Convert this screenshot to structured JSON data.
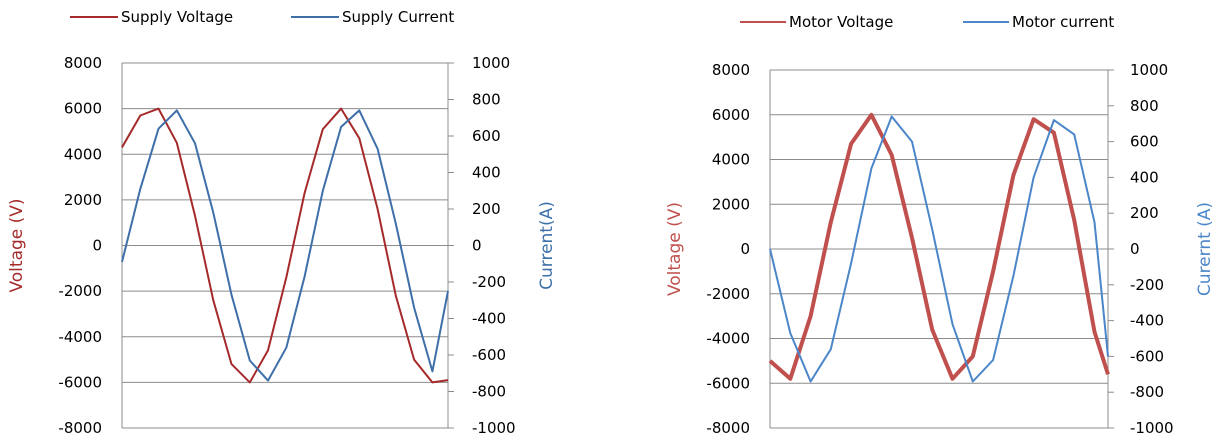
{
  "chart_data": [
    {
      "type": "line",
      "xlabel": "",
      "ylabel": "Voltage (V)",
      "y2label": "Current(A)",
      "ylim": [
        -8000,
        8000
      ],
      "y2lim": [
        -1000,
        1000
      ],
      "y_ticks": [
        "8000",
        "6000",
        "4000",
        "2000",
        "0",
        "-2000",
        "-4000",
        "-6000",
        "-8000"
      ],
      "y2_ticks": [
        "1000",
        "800",
        "600",
        "400",
        "200",
        "0",
        "-200",
        "-400",
        "-600",
        "-800",
        "-1000"
      ],
      "grid": true,
      "legend_position": "top",
      "series": [
        {
          "name": "Supply Voltage",
          "axis": "left",
          "color": "#A52A2A",
          "x": [
            0.0,
            0.056,
            0.112,
            0.168,
            0.224,
            0.28,
            0.336,
            0.392,
            0.448,
            0.504,
            0.56,
            0.616,
            0.672,
            0.728,
            0.784,
            0.84,
            0.896,
            0.952,
            1.0
          ],
          "values": [
            4300,
            5700,
            6000,
            4500,
            1300,
            -2400,
            -5200,
            -6000,
            -4600,
            -1400,
            2300,
            5100,
            6000,
            4700,
            1600,
            -2200,
            -5000,
            -6000,
            -5900
          ]
        },
        {
          "name": "Supply Current",
          "axis": "right",
          "color": "#3E6FA8",
          "x": [
            0.0,
            0.056,
            0.112,
            0.168,
            0.224,
            0.28,
            0.336,
            0.392,
            0.448,
            0.504,
            0.56,
            0.616,
            0.672,
            0.728,
            0.784,
            0.84,
            0.896,
            0.952,
            1.0
          ],
          "values": [
            -90,
            310,
            640,
            740,
            560,
            180,
            -270,
            -630,
            -740,
            -560,
            -170,
            300,
            650,
            740,
            530,
            120,
            -340,
            -690,
            -250
          ]
        }
      ]
    },
    {
      "type": "line",
      "xlabel": "",
      "ylabel": "Voltage (V)",
      "y2label": "Curernt (A)",
      "ylim": [
        -8000,
        8000
      ],
      "y2lim": [
        -1000,
        1000
      ],
      "y_ticks": [
        "8000",
        "6000",
        "4000",
        "2000",
        "0",
        "-2000",
        "-4000",
        "-6000",
        "-8000"
      ],
      "y2_ticks": [
        "1000",
        "800",
        "600",
        "400",
        "200",
        "0",
        "-200",
        "-400",
        "-600",
        "-800",
        "-1000"
      ],
      "grid": true,
      "legend_position": "top",
      "series": [
        {
          "name": "Motor Voltage",
          "axis": "left",
          "color": "#C0504D",
          "x": [
            0.0,
            0.06,
            0.12,
            0.18,
            0.24,
            0.3,
            0.36,
            0.42,
            0.48,
            0.54,
            0.6,
            0.66,
            0.72,
            0.78,
            0.84,
            0.9,
            0.96,
            1.0
          ],
          "values": [
            -5000,
            -5800,
            -3000,
            1200,
            4700,
            6000,
            4200,
            500,
            -3600,
            -5800,
            -4800,
            -1000,
            3300,
            5800,
            5200,
            1300,
            -3700,
            -5600
          ]
        },
        {
          "name": "Motor current",
          "axis": "right",
          "color": "#4A86C8",
          "x": [
            0.0,
            0.06,
            0.12,
            0.18,
            0.24,
            0.3,
            0.36,
            0.42,
            0.48,
            0.54,
            0.6,
            0.66,
            0.72,
            0.78,
            0.84,
            0.9,
            0.96,
            1.0
          ],
          "values": [
            0,
            -470,
            -740,
            -560,
            -80,
            450,
            740,
            600,
            110,
            -420,
            -740,
            -620,
            -150,
            400,
            720,
            640,
            150,
            -600
          ]
        }
      ]
    }
  ]
}
